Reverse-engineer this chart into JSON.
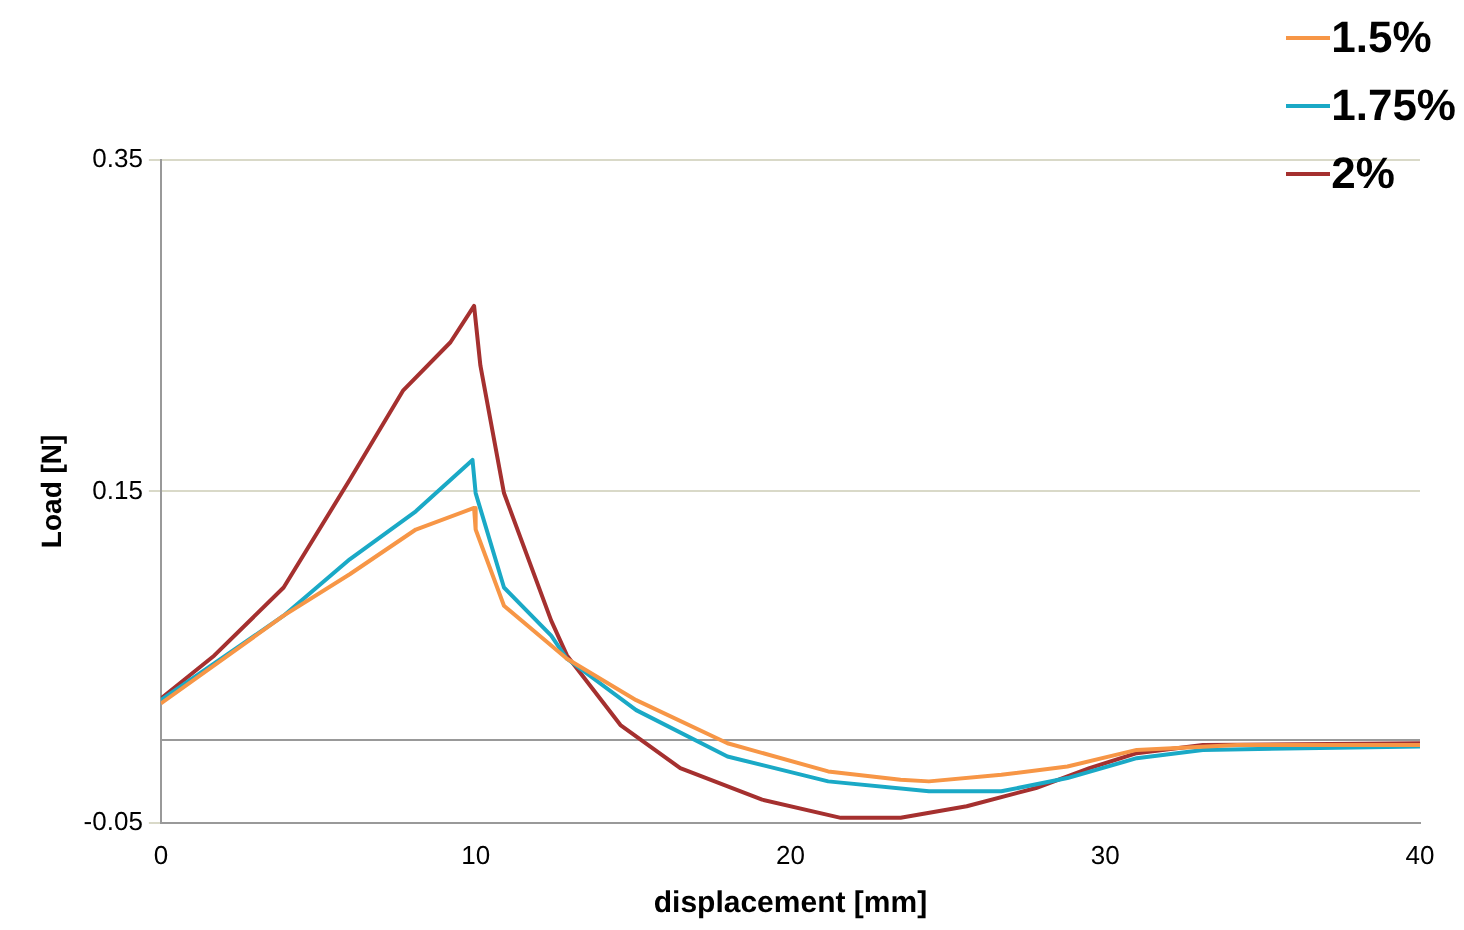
{
  "chart_data": {
    "type": "line",
    "xlabel": "displacement [mm]",
    "ylabel": "Load [N]",
    "xlim": [
      0,
      40
    ],
    "xticks": [
      0,
      10,
      20,
      30,
      40
    ],
    "ylim": [
      -0.05,
      0.35
    ],
    "yticks": [
      -0.05,
      0.15,
      0.35
    ],
    "grid": "y",
    "legend": "top right",
    "marker": "none",
    "line_style": "solid",
    "series": [
      {
        "name": "1.5%",
        "color": "#f79646",
        "x": [
          0,
          3.9,
          6,
          8.1,
          9.95,
          10,
          10.9,
          12.4,
          12.9,
          15.1,
          18,
          21.2,
          23.5,
          24.4,
          26.7,
          28.8,
          31,
          34.2,
          40
        ],
        "values": [
          0.022,
          0.075,
          0.1,
          0.127,
          0.14,
          0.127,
          0.081,
          0.057,
          0.049,
          0.024,
          -0.002,
          -0.019,
          -0.024,
          -0.025,
          -0.021,
          -0.016,
          -0.006,
          -0.003,
          -0.003
        ]
      },
      {
        "name": "1.75%",
        "color": "#1aa9c6",
        "x": [
          0,
          3.9,
          6,
          8.1,
          9.9,
          10,
          10.9,
          12.4,
          12.9,
          15.1,
          18,
          21.2,
          24.4,
          26.7,
          28.8,
          31,
          33.1,
          40
        ],
        "values": [
          0.024,
          0.075,
          0.109,
          0.138,
          0.169,
          0.149,
          0.092,
          0.063,
          0.049,
          0.018,
          -0.01,
          -0.025,
          -0.031,
          -0.031,
          -0.023,
          -0.011,
          -0.006,
          -0.004
        ]
      },
      {
        "name": "2%",
        "color": "#a5302f",
        "x": [
          0,
          1.7,
          3.9,
          6,
          7.7,
          9.2,
          9.95,
          10.15,
          10.9,
          12.4,
          12.9,
          14.6,
          16.5,
          19.1,
          21.6,
          23.5,
          25.6,
          27.8,
          29.5,
          31,
          33.1,
          40
        ],
        "values": [
          0.025,
          0.051,
          0.092,
          0.157,
          0.211,
          0.24,
          0.262,
          0.226,
          0.149,
          0.072,
          0.051,
          0.009,
          -0.017,
          -0.036,
          -0.047,
          -0.047,
          -0.04,
          -0.029,
          -0.017,
          -0.008,
          -0.003,
          -0.002
        ]
      }
    ]
  }
}
